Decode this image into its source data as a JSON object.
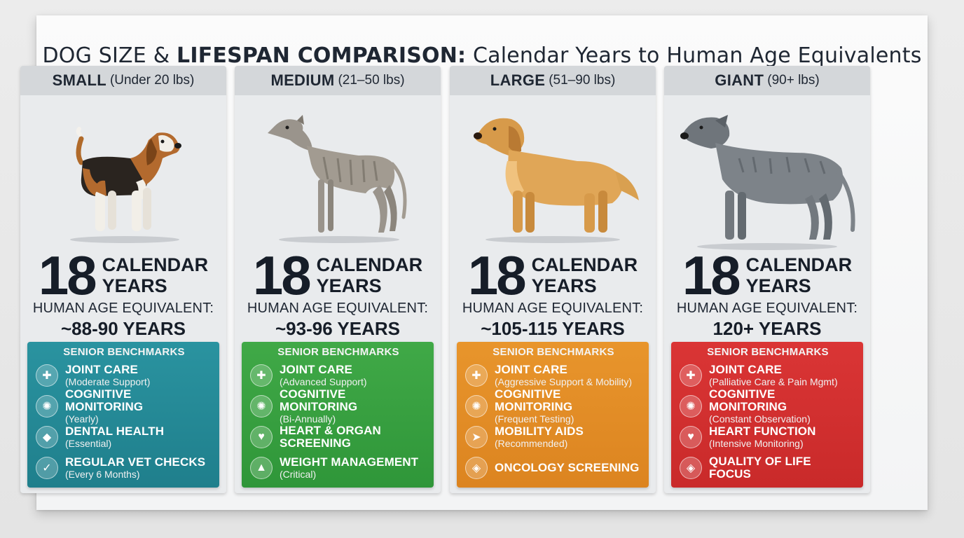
{
  "title": {
    "part_a": "Dog Size &",
    "part_b": "Lifespan Comparison:",
    "part_c": "Calendar Years to Human Age Equivalents"
  },
  "columns": [
    {
      "size": "SMALL",
      "weight": "(Under 20 lbs)",
      "dog_icon": "beagle-illustration",
      "years_num": "18",
      "years_lbl1": "CALENDAR",
      "years_lbl2": "YEARS",
      "hae_label": "HUMAN AGE EQUIVALENT:",
      "hae_value": "~88-90 YEARS",
      "accent": "#2a93a0",
      "bench_title": "SENIOR BENCHMARKS",
      "items": [
        {
          "name": "JOINT CARE",
          "sub": "(Moderate Support)",
          "icon": "joint-icon"
        },
        {
          "name": "COGNITIVE MONITORING",
          "sub": "(Yearly)",
          "icon": "brain-icon"
        },
        {
          "name": "DENTAL HEALTH",
          "sub": "(Essential)",
          "icon": "tooth-icon"
        },
        {
          "name": "REGULAR VET CHECKS",
          "sub": "(Every 6 Months)",
          "icon": "clipboard-icon"
        }
      ]
    },
    {
      "size": "MEDIUM",
      "weight": "(21–50 lbs)",
      "dog_icon": "whippet-illustration",
      "years_num": "18",
      "years_lbl1": "CALENDAR",
      "years_lbl2": "YEARS",
      "hae_label": "HUMAN AGE EQUIVALENT:",
      "hae_value": "~93-96 YEARS",
      "accent": "#40a947",
      "bench_title": "SENIOR BENCHMARKS",
      "items": [
        {
          "name": "JOINT CARE",
          "sub": "(Advanced Support)",
          "icon": "joint-icon"
        },
        {
          "name": "COGNITIVE MONITORING",
          "sub": "(Bi-Annually)",
          "icon": "brain-icon"
        },
        {
          "name": "HEART & ORGAN",
          "name2": "SCREENING",
          "sub": "",
          "icon": "heart-icon"
        },
        {
          "name": "WEIGHT MANAGEMENT",
          "sub": "(Critical)",
          "icon": "weight-icon"
        }
      ]
    },
    {
      "size": "LARGE",
      "weight": "(51–90 lbs)",
      "dog_icon": "golden-retriever-illustration",
      "years_num": "18",
      "years_lbl1": "CALENDAR",
      "years_lbl2": "YEARS",
      "hae_label": "HUMAN AGE EQUIVALENT:",
      "hae_value": "~105-115 YEARS",
      "accent": "#e8952c",
      "bench_title": "SENIOR BENCHMARKS",
      "items": [
        {
          "name": "JOINT CARE",
          "sub": "(Aggressive Support & Mobility)",
          "icon": "joint-icon"
        },
        {
          "name": "COGNITIVE MONITORING",
          "sub": "(Frequent Testing)",
          "icon": "brain-icon"
        },
        {
          "name": "MOBILITY AIDS",
          "sub": "(Recommended)",
          "icon": "walking-icon"
        },
        {
          "name": "ONCOLOGY SCREENING",
          "sub": "",
          "icon": "shield-icon"
        }
      ]
    },
    {
      "size": "GIANT",
      "weight": "(90+ lbs)",
      "dog_icon": "wolfhound-illustration",
      "years_num": "18",
      "years_lbl1": "CALENDAR",
      "years_lbl2": "YEARS",
      "hae_label": "HUMAN AGE EQUIVALENT:",
      "hae_value": "120+ YEARS",
      "accent": "#da3535",
      "bench_title": "SENIOR BENCHMARKS",
      "items": [
        {
          "name": "JOINT CARE",
          "sub": "(Palliative Care & Pain Mgmt)",
          "icon": "joint-icon"
        },
        {
          "name": "COGNITIVE MONITORING",
          "sub": "(Constant Observation)",
          "icon": "brain-icon"
        },
        {
          "name": "HEART FUNCTION",
          "sub": "(Intensive Monitoring)",
          "icon": "heart-icon"
        },
        {
          "name": "QUALITY OF LIFE FOCUS",
          "sub": "",
          "icon": "shield-icon"
        }
      ]
    }
  ]
}
